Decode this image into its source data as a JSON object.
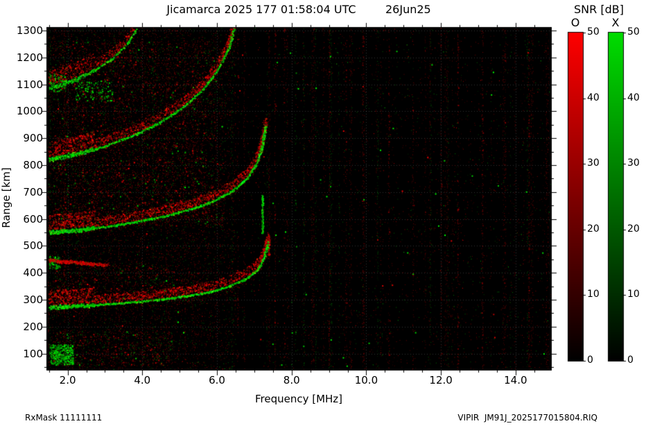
{
  "footer": {
    "left": "RxMask 11111111",
    "right": "VIPIR  JM91J_2025177015804.RIQ"
  },
  "colorbar": {
    "title": "SNR [dB]",
    "o_label": "O",
    "x_label": "X",
    "o_color": "#ff0000",
    "x_color": "#00dd00",
    "min": 0,
    "max": 50,
    "ticks": [
      "0",
      "10",
      "20",
      "30",
      "40",
      "50"
    ]
  },
  "chart_data": {
    "type": "heatmap",
    "subtype": "ionogram",
    "title_main": "Jicamarca 2025 177 01:58:04 UTC",
    "title_date": "26Jun25",
    "station": "Jicamarca",
    "xlabel": "Frequency [MHz]",
    "ylabel": "Range [km]",
    "xlim": [
      1.45,
      14.95
    ],
    "ylim": [
      40,
      1310
    ],
    "grid": "dotted",
    "background": "#000000",
    "x_ticks": {
      "values": [
        2,
        4,
        6,
        8,
        10,
        12,
        14
      ],
      "labels": [
        "2.0",
        "4.0",
        "6.0",
        "8.0",
        "10.0",
        "12.0",
        "14.0"
      ]
    },
    "x_minor_step": 0.5,
    "y_ticks": {
      "values": [
        100,
        200,
        300,
        400,
        500,
        600,
        700,
        800,
        900,
        1000,
        1100,
        1200,
        1300
      ],
      "labels": [
        "100",
        "200",
        "300",
        "400",
        "500",
        "600",
        "700",
        "800",
        "900",
        "1000",
        "1100",
        "1200",
        "1300"
      ]
    },
    "y_minor_step": 50,
    "series_legend": [
      {
        "name": "O-mode",
        "color": "#ff0000"
      },
      {
        "name": "X-mode",
        "color": "#00dd00"
      }
    ],
    "critical_frequency_mhz": 7.4,
    "traces": [
      {
        "name": "flat-echo-440km",
        "style": "red",
        "points": [
          [
            1.5,
            448
          ],
          [
            2.0,
            442
          ],
          [
            2.6,
            435
          ],
          [
            3.1,
            430
          ]
        ]
      },
      {
        "name": "F-layer-1st-hop",
        "style": "bright",
        "points": [
          [
            1.5,
            272
          ],
          [
            2.2,
            278
          ],
          [
            3.0,
            285
          ],
          [
            3.8,
            293
          ],
          [
            4.6,
            304
          ],
          [
            5.2,
            315
          ],
          [
            5.8,
            330
          ],
          [
            6.3,
            350
          ],
          [
            6.7,
            374
          ],
          [
            7.0,
            402
          ],
          [
            7.15,
            428
          ],
          [
            7.25,
            458
          ],
          [
            7.33,
            492
          ],
          [
            7.38,
            520
          ]
        ]
      },
      {
        "name": "F-layer-2nd-hop",
        "style": "bright",
        "points": [
          [
            1.5,
            552
          ],
          [
            2.2,
            560
          ],
          [
            3.0,
            572
          ],
          [
            3.8,
            590
          ],
          [
            4.6,
            612
          ],
          [
            5.3,
            638
          ],
          [
            5.9,
            668
          ],
          [
            6.4,
            705
          ],
          [
            6.8,
            752
          ],
          [
            7.05,
            805
          ],
          [
            7.2,
            870
          ],
          [
            7.3,
            950
          ]
        ]
      },
      {
        "name": "F-layer-3rd-hop",
        "style": "medium",
        "points": [
          [
            1.5,
            822
          ],
          [
            2.2,
            842
          ],
          [
            3.0,
            872
          ],
          [
            3.8,
            914
          ],
          [
            4.5,
            962
          ],
          [
            5.1,
            1018
          ],
          [
            5.6,
            1080
          ],
          [
            6.0,
            1150
          ],
          [
            6.3,
            1232
          ],
          [
            6.45,
            1310
          ]
        ]
      },
      {
        "name": "F-layer-4th-hop",
        "style": "faint",
        "points": [
          [
            1.5,
            1088
          ],
          [
            2.1,
            1114
          ],
          [
            2.7,
            1152
          ],
          [
            3.2,
            1198
          ],
          [
            3.6,
            1252
          ],
          [
            3.85,
            1310
          ]
        ]
      }
    ],
    "streaks": [
      {
        "f": 7.21,
        "km": [
          548,
          690
        ],
        "color": "green"
      },
      {
        "f": 7.38,
        "km": [
          468,
          540
        ],
        "color": "red"
      }
    ],
    "spread_regions": [
      {
        "f": [
          1.6,
          6.2
        ],
        "km": [
          575,
          830
        ],
        "red": 1300,
        "green": 260
      },
      {
        "f": [
          1.6,
          6.0
        ],
        "km": [
          845,
          1260
        ],
        "red": 1500,
        "green": 320
      },
      {
        "f": [
          1.6,
          5.5
        ],
        "km": [
          295,
          430
        ],
        "red": 420,
        "green": 90
      },
      {
        "f": [
          1.6,
          4.8
        ],
        "km": [
          55,
          185
        ],
        "red": 380,
        "green": 140
      }
    ],
    "blobs": [
      {
        "f": [
          1.5,
          2.15
        ],
        "km": [
          60,
          135
        ],
        "color": "green",
        "n": 420
      },
      {
        "f": [
          2.2,
          3.2
        ],
        "km": [
          1040,
          1115
        ],
        "color": "green",
        "n": 130
      },
      {
        "f": [
          1.5,
          1.95
        ],
        "km": [
          1075,
          1140
        ],
        "color": "green",
        "n": 110
      },
      {
        "f": [
          1.5,
          1.8
        ],
        "km": [
          415,
          462
        ],
        "color": "green",
        "n": 90
      }
    ],
    "rfi_lines": [
      {
        "f": 6.55,
        "color": "red",
        "n": 90
      },
      {
        "f": 7.55,
        "color": "red",
        "n": 160
      },
      {
        "f": 7.8,
        "color": "red",
        "n": 90
      },
      {
        "f": 8.1,
        "color": "green",
        "n": 60
      },
      {
        "f": 9.0,
        "color": "red",
        "n": 120
      },
      {
        "f": 9.45,
        "color": "red",
        "n": 90
      },
      {
        "f": 9.9,
        "color": "red",
        "n": 140
      },
      {
        "f": 10.6,
        "color": "red",
        "n": 100
      },
      {
        "f": 11.25,
        "color": "red",
        "n": 90
      },
      {
        "f": 12.0,
        "color": "red",
        "n": 80
      },
      {
        "f": 12.45,
        "color": "red",
        "n": 130
      },
      {
        "f": 13.1,
        "color": "red",
        "n": 110
      },
      {
        "f": 13.7,
        "color": "red",
        "n": 70
      },
      {
        "f": 14.35,
        "color": "red",
        "n": 90
      }
    ],
    "noise": {
      "red_dots": 9000,
      "green_dots": 2200,
      "left_bias_mhz": 6.5,
      "stripe_columns": 70,
      "bright_specks_green": 55,
      "bright_specks_red": 30
    }
  }
}
